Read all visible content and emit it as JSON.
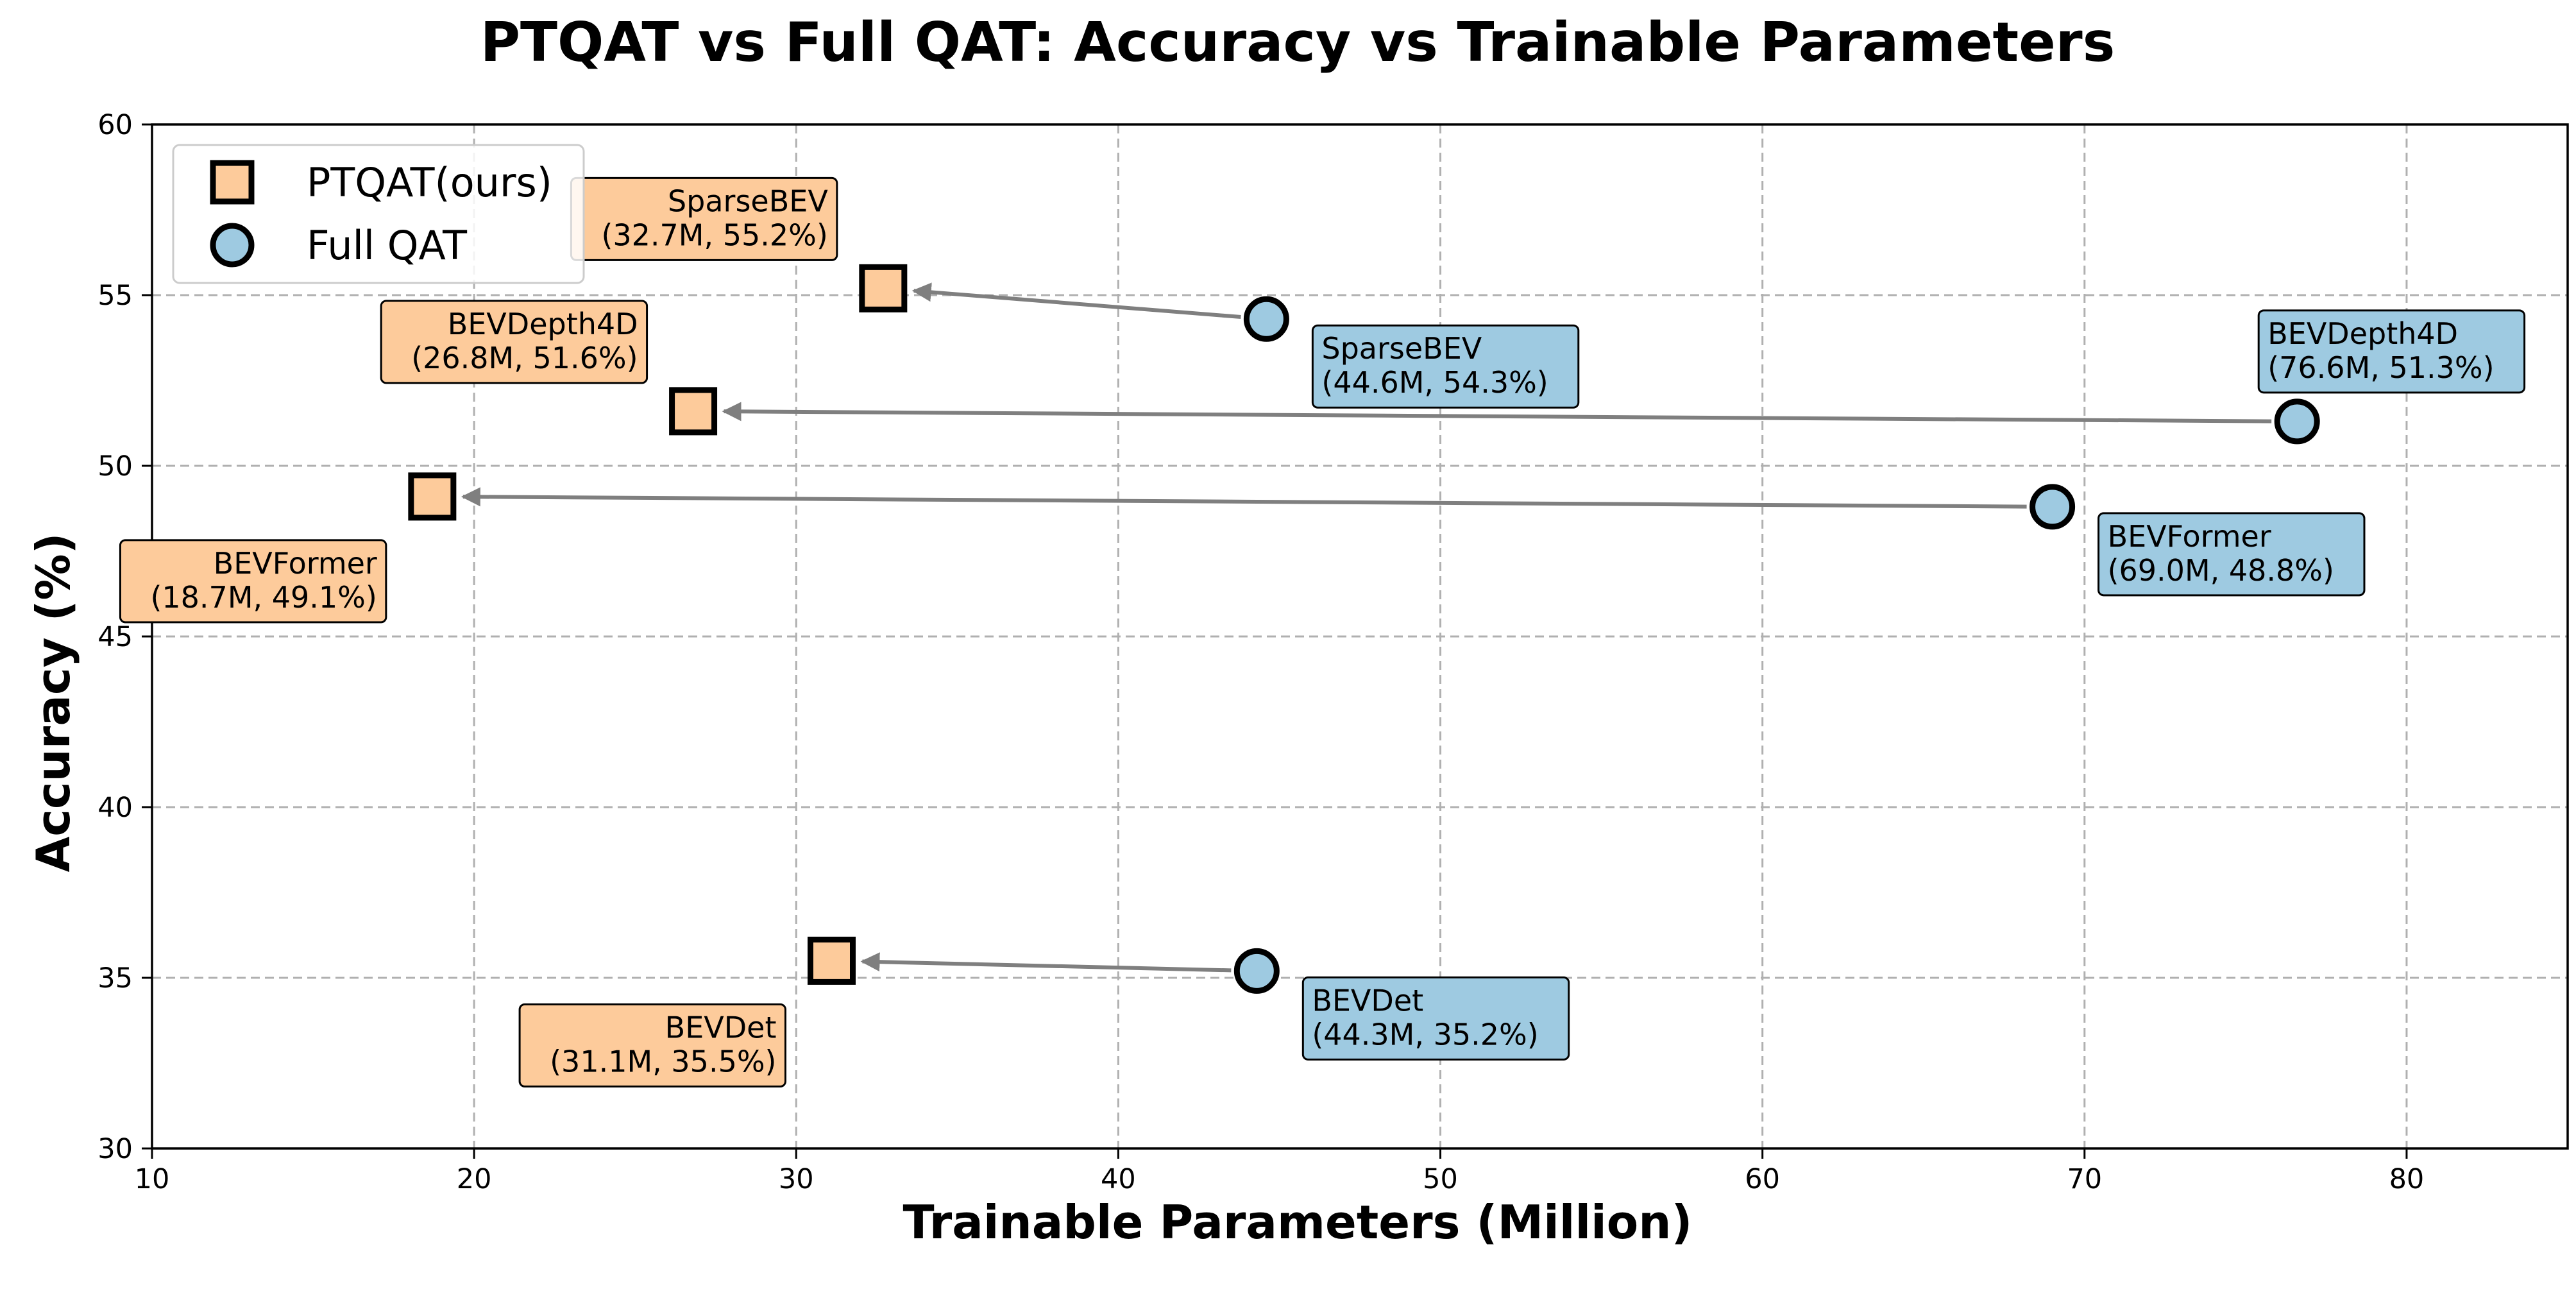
{
  "chart_data": {
    "type": "scatter",
    "title": "PTQAT vs Full QAT: Accuracy vs Trainable Parameters",
    "xlabel": "Trainable Parameters (Million)",
    "ylabel": "Accuracy (%)",
    "xlim": [
      10,
      85
    ],
    "ylim": [
      30,
      60
    ],
    "xticks": [
      10,
      20,
      30,
      40,
      50,
      60,
      70,
      80
    ],
    "yticks": [
      30,
      35,
      40,
      45,
      50,
      55,
      60
    ],
    "grid": true,
    "legend_position": "top-left",
    "legend": [
      {
        "label": "PTQAT(ours)",
        "marker": "square",
        "color": "#FDCB9B"
      },
      {
        "label": "Full QAT",
        "marker": "circle",
        "color": "#9ECAE1"
      }
    ],
    "series": [
      {
        "name": "PTQAT(ours)",
        "marker": "square",
        "color": "#FDCB9B",
        "points": [
          {
            "model": "BEVFormer",
            "x": 18.7,
            "y": 49.1,
            "label": "BEVFormer\n(18.7M, 49.1%)"
          },
          {
            "model": "BEVDepth4D",
            "x": 26.8,
            "y": 51.6,
            "label": "BEVDepth4D\n(26.8M, 51.6%)"
          },
          {
            "model": "SparseBEV",
            "x": 32.7,
            "y": 55.2,
            "label": "SparseBEV\n(32.7M, 55.2%)"
          },
          {
            "model": "BEVDet",
            "x": 31.1,
            "y": 35.5,
            "label": "BEVDet\n(31.1M, 35.5%)"
          }
        ]
      },
      {
        "name": "Full QAT",
        "marker": "circle",
        "color": "#9ECAE1",
        "points": [
          {
            "model": "BEVFormer",
            "x": 69.0,
            "y": 48.8,
            "label": "BEVFormer\n(69.0M, 48.8%)"
          },
          {
            "model": "BEVDepth4D",
            "x": 76.6,
            "y": 51.3,
            "label": "BEVDepth4D\n(76.6M, 51.3%)"
          },
          {
            "model": "SparseBEV",
            "x": 44.6,
            "y": 54.3,
            "label": "SparseBEV\n(44.6M, 54.3%)"
          },
          {
            "model": "BEVDet",
            "x": 44.3,
            "y": 35.2,
            "label": "BEVDet\n(44.3M, 35.2%)"
          }
        ]
      }
    ],
    "arrows": [
      {
        "model": "BEVFormer",
        "from": [
          69.0,
          48.8
        ],
        "to": [
          18.7,
          49.1
        ]
      },
      {
        "model": "BEVDepth4D",
        "from": [
          76.6,
          51.3
        ],
        "to": [
          26.8,
          51.6
        ]
      },
      {
        "model": "SparseBEV",
        "from": [
          44.6,
          54.3
        ],
        "to": [
          32.7,
          55.2
        ]
      },
      {
        "model": "BEVDet",
        "from": [
          44.3,
          35.2
        ],
        "to": [
          31.1,
          35.5
        ]
      }
    ],
    "colors": {
      "ptqat_fill": "#FDCB9B",
      "qat_fill": "#9ECAE1",
      "arrow": "#7F7F7F",
      "grid": "#B0B0B0"
    }
  }
}
